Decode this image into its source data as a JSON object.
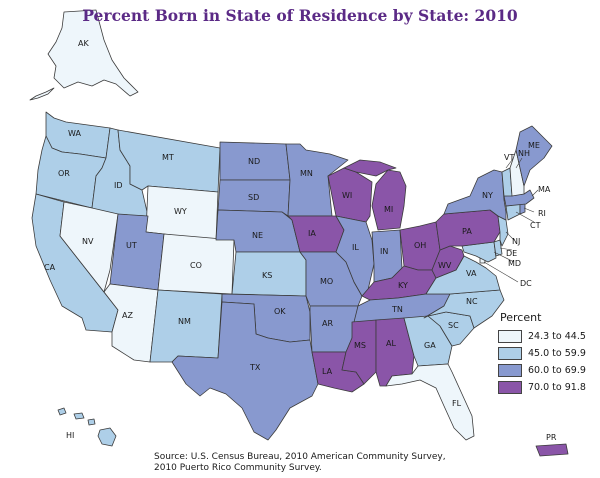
{
  "title": "Percent Born in State of Residence by State: 2010",
  "legend": {
    "title": "Percent",
    "items": [
      {
        "label": "24.3 to 44.5",
        "color": "#eef6fb"
      },
      {
        "label": "45.0 to 59.9",
        "color": "#aecfe8"
      },
      {
        "label": "60.0 to 69.9",
        "color": "#8899cf"
      },
      {
        "label": "70.0 to 91.8",
        "color": "#8a55a8"
      }
    ]
  },
  "source_line1": "Source: U.S. Census Bureau, 2010 American Community Survey,",
  "source_line2": "2010 Puerto Rico Community Survey.",
  "states": {
    "AK": {
      "label": "AK",
      "class": 0
    },
    "HI": {
      "label": "HI",
      "class": 1
    },
    "WA": {
      "label": "WA",
      "class": 1
    },
    "OR": {
      "label": "OR",
      "class": 1
    },
    "CA": {
      "label": "CA",
      "class": 1
    },
    "ID": {
      "label": "ID",
      "class": 1
    },
    "NV": {
      "label": "NV",
      "class": 0
    },
    "AZ": {
      "label": "AZ",
      "class": 0
    },
    "MT": {
      "label": "MT",
      "class": 1
    },
    "WY": {
      "label": "WY",
      "class": 0
    },
    "UT": {
      "label": "UT",
      "class": 2
    },
    "CO": {
      "label": "CO",
      "class": 0
    },
    "NM": {
      "label": "NM",
      "class": 1
    },
    "ND": {
      "label": "ND",
      "class": 2
    },
    "SD": {
      "label": "SD",
      "class": 2
    },
    "NE": {
      "label": "NE",
      "class": 2
    },
    "KS": {
      "label": "KS",
      "class": 1
    },
    "OK": {
      "label": "OK",
      "class": 2
    },
    "TX": {
      "label": "TX",
      "class": 2
    },
    "MN": {
      "label": "MN",
      "class": 2
    },
    "IA": {
      "label": "IA",
      "class": 3
    },
    "MO": {
      "label": "MO",
      "class": 2
    },
    "AR": {
      "label": "AR",
      "class": 2
    },
    "LA": {
      "label": "LA",
      "class": 3
    },
    "WI": {
      "label": "WI",
      "class": 3
    },
    "IL": {
      "label": "IL",
      "class": 2
    },
    "MI": {
      "label": "MI",
      "class": 3
    },
    "IN": {
      "label": "IN",
      "class": 2
    },
    "OH": {
      "label": "OH",
      "class": 3
    },
    "KY": {
      "label": "KY",
      "class": 3
    },
    "TN": {
      "label": "TN",
      "class": 2
    },
    "MS": {
      "label": "MS",
      "class": 3
    },
    "AL": {
      "label": "AL",
      "class": 3
    },
    "GA": {
      "label": "GA",
      "class": 1
    },
    "FL": {
      "label": "FL",
      "class": 0
    },
    "SC": {
      "label": "SC",
      "class": 1
    },
    "NC": {
      "label": "NC",
      "class": 1
    },
    "VA": {
      "label": "VA",
      "class": 1
    },
    "WV": {
      "label": "WV",
      "class": 3
    },
    "PA": {
      "label": "PA",
      "class": 3
    },
    "NY": {
      "label": "NY",
      "class": 2
    },
    "VT": {
      "label": "VT",
      "class": 1
    },
    "NH": {
      "label": "NH",
      "class": 0
    },
    "ME": {
      "label": "ME",
      "class": 2
    },
    "MA": {
      "label": "MA",
      "class": 2
    },
    "RI": {
      "label": "RI",
      "class": 2
    },
    "CT": {
      "label": "CT",
      "class": 1
    },
    "NJ": {
      "label": "NJ",
      "class": 1
    },
    "DE": {
      "label": "DE",
      "class": 1
    },
    "MD": {
      "label": "MD",
      "class": 1
    },
    "DC": {
      "label": "DC",
      "class": 0
    },
    "PR": {
      "label": "PR",
      "class": 3
    }
  }
}
